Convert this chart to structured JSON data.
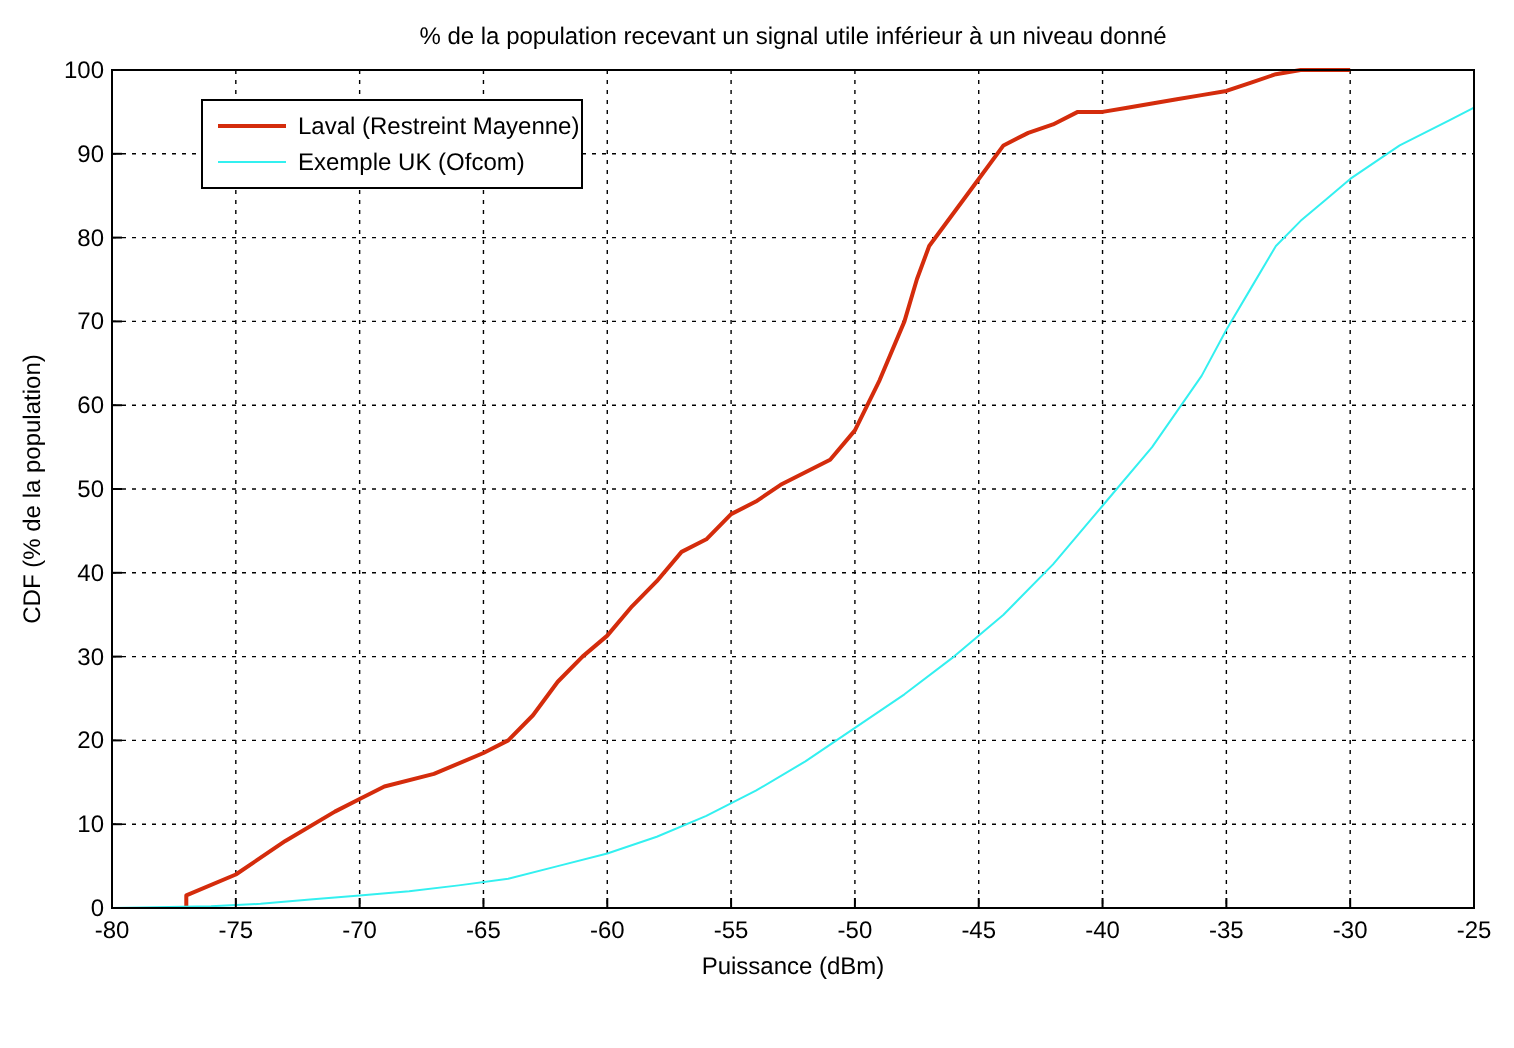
{
  "chart_data": {
    "type": "line",
    "title": "% de la population recevant un signal utile inférieur à un niveau donné",
    "xlabel": "Puissance (dBm)",
    "ylabel": "CDF (% de la population)",
    "xlim": [
      -80,
      -25
    ],
    "ylim": [
      0,
      100
    ],
    "xticks": [
      -80,
      -75,
      -70,
      -65,
      -60,
      -55,
      -50,
      -45,
      -40,
      -35,
      -30,
      -25
    ],
    "yticks": [
      0,
      10,
      20,
      30,
      40,
      50,
      60,
      70,
      80,
      90,
      100
    ],
    "grid": true,
    "legend": "top left",
    "series": [
      {
        "name": "Laval (Restreint Mayenne)",
        "color": "#d42c0c",
        "x": [
          -77,
          -77,
          -75,
          -73,
          -71,
          -70,
          -69,
          -67,
          -65,
          -64,
          -63,
          -62,
          -61,
          -60,
          -59,
          -58,
          -57,
          -56,
          -55,
          -54,
          -53,
          -52,
          -51,
          -50,
          -49,
          -48,
          -47.5,
          -47,
          -46,
          -45,
          -44,
          -43,
          -42,
          -41,
          -40,
          -39,
          -38,
          -37,
          -36,
          -35,
          -34,
          -33,
          -32,
          -30
        ],
        "values": [
          0,
          1.5,
          4,
          8,
          11.5,
          13,
          14.5,
          16,
          18.5,
          20,
          23,
          27,
          30,
          32.5,
          36,
          39,
          42.5,
          44,
          47,
          48.5,
          50.5,
          52,
          53.5,
          57,
          63,
          70,
          75,
          79,
          83,
          87,
          91,
          92.5,
          93.5,
          95,
          95,
          95.5,
          96,
          96.5,
          97,
          97.5,
          98.5,
          99.5,
          100,
          100
        ]
      },
      {
        "name": "Exemple UK (Ofcom)",
        "color": "#33f0f0",
        "x": [
          -80,
          -76,
          -74,
          -72,
          -70,
          -68,
          -66,
          -64,
          -62,
          -60,
          -58,
          -56,
          -54,
          -52,
          -50,
          -48,
          -46,
          -44,
          -42,
          -40,
          -38,
          -36,
          -35,
          -34,
          -33,
          -32,
          -31,
          -30,
          -28,
          -26,
          -25
        ],
        "values": [
          0,
          0.2,
          0.5,
          1,
          1.5,
          2,
          2.7,
          3.5,
          5,
          6.5,
          8.5,
          11,
          14,
          17.5,
          21.5,
          25.5,
          30,
          35,
          41,
          48,
          55,
          63.5,
          69,
          74,
          79,
          82,
          84.5,
          87,
          91,
          94,
          95.5
        ]
      }
    ]
  }
}
